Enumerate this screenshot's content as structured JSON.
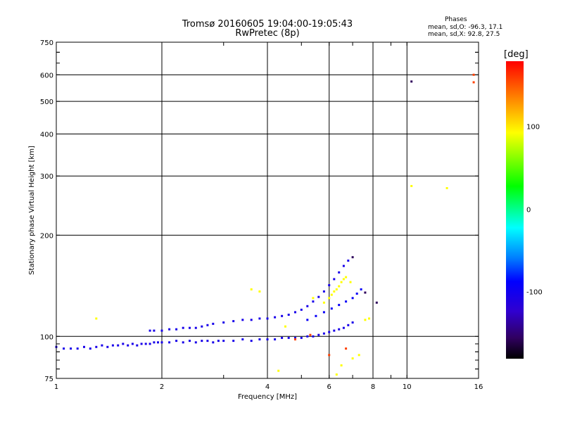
{
  "chart_data": {
    "type": "scatter",
    "title": "Tromsø 20160605 19:04:00-19:05:43",
    "subtitle": "RwPretec (8p)",
    "xlabel": "Frequency [MHz]",
    "ylabel": "Stationary phase Virtual Height [km]",
    "x_scale": "log",
    "y_scale": "log",
    "xlim": [
      1,
      16
    ],
    "ylim": [
      75,
      750
    ],
    "x_ticks": [
      1,
      2,
      4,
      6,
      8,
      10,
      16
    ],
    "x_tick_labels": [
      "1",
      "2",
      "4",
      "6",
      "8",
      "10",
      "16"
    ],
    "y_ticks": [
      75,
      100,
      200,
      300,
      400,
      500,
      600,
      750
    ],
    "y_tick_labels": [
      "75",
      "100",
      "200",
      "300",
      "400",
      "500",
      "600",
      "750"
    ],
    "grid": true,
    "stats": {
      "heading": "Phases",
      "o_mode": "mean, sd,O: -96.3, 17.1",
      "x_mode": "mean, sd,X:  92.8, 27.5"
    },
    "colorbar": {
      "label": "[deg]",
      "range": [
        -180,
        180
      ],
      "ticks": [
        100,
        0,
        -100
      ],
      "tick_labels": [
        "100",
        "0",
        "-100"
      ]
    },
    "series": [
      {
        "trace": "lower-trace",
        "phase_deg": -100,
        "points": [
          [
            1.0,
            93
          ],
          [
            1.05,
            92
          ],
          [
            1.1,
            92
          ],
          [
            1.15,
            92
          ],
          [
            1.2,
            93
          ],
          [
            1.25,
            92
          ],
          [
            1.3,
            93
          ],
          [
            1.35,
            94
          ],
          [
            1.4,
            93
          ],
          [
            1.45,
            94
          ],
          [
            1.5,
            94
          ],
          [
            1.55,
            95
          ],
          [
            1.6,
            94
          ],
          [
            1.65,
            95
          ],
          [
            1.7,
            94
          ],
          [
            1.75,
            95
          ],
          [
            1.8,
            95
          ],
          [
            1.85,
            95
          ],
          [
            1.9,
            96
          ],
          [
            1.95,
            96
          ],
          [
            2.0,
            96
          ],
          [
            2.1,
            96
          ],
          [
            2.2,
            97
          ],
          [
            2.3,
            96
          ],
          [
            2.4,
            97
          ],
          [
            2.5,
            96
          ],
          [
            2.6,
            97
          ],
          [
            2.7,
            97
          ],
          [
            2.8,
            96
          ],
          [
            2.9,
            97
          ],
          [
            3.0,
            97
          ],
          [
            3.2,
            97
          ],
          [
            3.4,
            98
          ],
          [
            3.6,
            97
          ],
          [
            3.8,
            98
          ],
          [
            4.0,
            98
          ],
          [
            4.2,
            98
          ],
          [
            4.4,
            99
          ],
          [
            4.6,
            99
          ],
          [
            4.8,
            99
          ],
          [
            5.0,
            99
          ],
          [
            5.2,
            100
          ],
          [
            5.4,
            100
          ],
          [
            5.6,
            101
          ],
          [
            5.8,
            102
          ],
          [
            6.0,
            103
          ],
          [
            6.2,
            104
          ],
          [
            6.4,
            105
          ],
          [
            6.6,
            106
          ],
          [
            6.8,
            108
          ],
          [
            7.0,
            110
          ]
        ]
      },
      {
        "trace": "upper-trace",
        "phase_deg": -100,
        "points": [
          [
            1.85,
            104
          ],
          [
            1.9,
            104
          ],
          [
            2.0,
            104
          ],
          [
            2.1,
            105
          ],
          [
            2.2,
            105
          ],
          [
            2.3,
            106
          ],
          [
            2.4,
            106
          ],
          [
            2.5,
            106
          ],
          [
            2.6,
            107
          ],
          [
            2.7,
            108
          ],
          [
            2.8,
            109
          ],
          [
            3.0,
            110
          ],
          [
            3.2,
            111
          ],
          [
            3.4,
            112
          ],
          [
            3.6,
            112
          ],
          [
            3.8,
            113
          ],
          [
            4.0,
            113
          ],
          [
            4.2,
            114
          ],
          [
            4.4,
            115
          ],
          [
            4.6,
            116
          ],
          [
            4.8,
            118
          ],
          [
            5.0,
            120
          ],
          [
            5.2,
            123
          ],
          [
            5.4,
            127
          ],
          [
            5.6,
            131
          ],
          [
            5.8,
            136
          ],
          [
            6.0,
            142
          ],
          [
            6.2,
            148
          ],
          [
            6.4,
            155
          ],
          [
            6.6,
            162
          ],
          [
            6.8,
            168
          ]
        ]
      },
      {
        "trace": "upper-trace-extension",
        "phase_deg": -90,
        "points": [
          [
            5.2,
            112
          ],
          [
            5.5,
            115
          ],
          [
            5.8,
            118
          ],
          [
            6.1,
            121
          ],
          [
            6.4,
            124
          ],
          [
            6.7,
            127
          ],
          [
            7.0,
            130
          ],
          [
            7.2,
            134
          ],
          [
            7.4,
            138
          ]
        ]
      },
      {
        "trace": "x-mode-echoes",
        "phase_deg": 100,
        "points": [
          [
            1.3,
            113
          ],
          [
            3.6,
            138
          ],
          [
            3.8,
            136
          ],
          [
            4.5,
            107
          ],
          [
            5.4,
            130
          ],
          [
            5.8,
            126
          ],
          [
            6.0,
            130
          ],
          [
            6.1,
            133
          ],
          [
            6.2,
            136
          ],
          [
            6.3,
            138
          ],
          [
            6.4,
            141
          ],
          [
            6.5,
            145
          ],
          [
            6.6,
            148
          ],
          [
            6.7,
            150
          ],
          [
            6.9,
            145
          ],
          [
            7.6,
            112
          ],
          [
            7.8,
            113
          ],
          [
            4.3,
            79
          ],
          [
            6.3,
            77
          ],
          [
            6.5,
            82
          ],
          [
            7.0,
            86
          ],
          [
            7.3,
            88
          ],
          [
            10.3,
            280
          ],
          [
            13.0,
            276
          ]
        ]
      },
      {
        "trace": "high-phase-echoes",
        "phase_deg": 160,
        "points": [
          [
            4.8,
            98
          ],
          [
            5.3,
            101
          ],
          [
            6.0,
            88
          ],
          [
            6.7,
            92
          ],
          [
            15.5,
            600
          ],
          [
            15.5,
            570
          ]
        ]
      },
      {
        "trace": "dark-echoes",
        "phase_deg": -150,
        "points": [
          [
            10.3,
            573
          ],
          [
            7.0,
            172
          ],
          [
            8.2,
            126
          ],
          [
            7.6,
            135
          ]
        ]
      }
    ]
  }
}
